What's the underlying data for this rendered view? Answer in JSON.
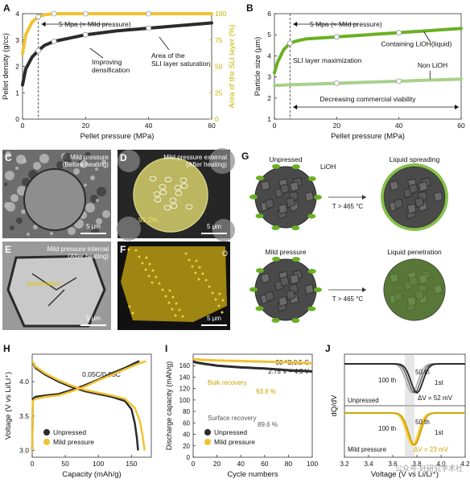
{
  "panel_letters": {
    "a": "A",
    "b": "B",
    "c": "C",
    "d": "D",
    "e": "E",
    "f": "F",
    "g": "G",
    "h": "H",
    "i": "I",
    "j": "J"
  },
  "micrographs": {
    "c_caption": "Mild pressure\n(Before heating)",
    "d_caption": "Mild pressure external\n(After heating)",
    "d_percent": "95.2%",
    "e_caption": "Mild pressure internal\n(After heating)",
    "e_annotation": "penetration",
    "f_element": "O",
    "scalebar": "5 μm"
  },
  "schematic": {
    "unpressed": "Unpressed",
    "lioh": "LiOH",
    "liquid_spreading": "Liquid spreading",
    "mild_pressure": "Mild pressure",
    "liquid_penetration": "Liquid penetration",
    "temperature_top": "T > 465 °C",
    "temperature_bottom": "T > 465 °C"
  },
  "watermark": "公众号·好研究学术社",
  "colors": {
    "dark": "#2b2b2b",
    "gray": "#8a8a8a",
    "yellow": "#f1c232",
    "green": "#6ab023",
    "lightgreen": "#a8d08d",
    "axis_yellow": "#c9b400"
  },
  "chart_data": [
    {
      "panel": "A",
      "type": "line",
      "xlabel": "Pellet pressure (MPa)",
      "ylabel": "Pellet density (g/cc)",
      "ylabel_right": "Area of the SLI layer (%)",
      "xlim": [
        0,
        60
      ],
      "ylim": [
        0,
        4
      ],
      "ylim_right": [
        0,
        100
      ],
      "xticks": [
        "0",
        "20",
        "40",
        "60"
      ],
      "yticks": [
        "0",
        "1",
        "2",
        "3",
        "4"
      ],
      "yticks_right": [
        "0",
        "25",
        "50",
        "75",
        "100"
      ],
      "series": [
        {
          "axis": "left",
          "color": "#2b2b2b",
          "x": [
            0,
            1,
            3,
            5,
            7,
            10,
            20,
            30,
            40,
            50,
            60
          ],
          "y": [
            1.3,
            1.9,
            2.35,
            2.6,
            2.8,
            2.95,
            3.2,
            3.35,
            3.45,
            3.55,
            3.65
          ],
          "markers_x": [
            5,
            10,
            20,
            40
          ]
        },
        {
          "axis": "right",
          "color": "#f1c232",
          "x": [
            0,
            1,
            3,
            5,
            7,
            10,
            20,
            30,
            40,
            50,
            60
          ],
          "y": [
            62,
            80,
            92,
            97,
            99,
            100,
            100,
            100,
            100,
            100,
            100
          ],
          "markers_x": [
            5,
            10,
            20,
            40
          ]
        }
      ],
      "vline_x": 5,
      "annotations": [
        "5 Mpa (≈ Mild pressure)",
        "Improving\ndensification",
        "Area of the\nSLI layer saturation"
      ]
    },
    {
      "panel": "B",
      "type": "line",
      "xlabel": "Pellet pressure (MPa)",
      "ylabel": "Particle size (μm)",
      "xlim": [
        0,
        60
      ],
      "ylim": [
        1,
        6
      ],
      "xticks": [
        "0",
        "20",
        "40",
        "60"
      ],
      "yticks": [
        "1",
        "2",
        "3",
        "4",
        "5",
        "6"
      ],
      "series": [
        {
          "name": "Containing LiOH(liquid)",
          "color": "#6ab023",
          "x": [
            0,
            1,
            3,
            5,
            7,
            10,
            20,
            30,
            40,
            50,
            60
          ],
          "y": [
            3.2,
            3.7,
            4.3,
            4.6,
            4.7,
            4.8,
            4.9,
            5.0,
            5.1,
            5.2,
            5.3
          ],
          "markers_x": [
            5,
            20,
            40
          ]
        },
        {
          "name": "Non LiOH",
          "color": "#a8d08d",
          "x": [
            0,
            10,
            20,
            30,
            40,
            50,
            60
          ],
          "y": [
            2.6,
            2.65,
            2.7,
            2.75,
            2.8,
            2.85,
            2.9
          ],
          "markers_x": [
            20,
            40
          ]
        }
      ],
      "vline_x": 5,
      "annotations": [
        "5 Mpa (≈ Mild pressure)",
        "SLI layer maximization",
        "Decreasing commercial viability"
      ]
    },
    {
      "panel": "H",
      "type": "line",
      "xlabel": "Capacity (mAh/g)",
      "ylabel": "Voltage (V vs Li/Li⁺)",
      "xlim": [
        0,
        180
      ],
      "ylim": [
        2.9,
        4.4
      ],
      "xticks": [
        "0",
        "50",
        "100",
        "150"
      ],
      "yticks": [
        "3.0",
        "3.5",
        "4.0"
      ],
      "rate_label": "0.05C/0.05C",
      "series": [
        {
          "name": "Unpressed",
          "color": "#2b2b2b",
          "charge": {
            "x": [
              0,
              1,
              5,
              20,
              40,
              60,
              80,
              100,
              120,
              140,
              155,
              162
            ],
            "y": [
              3.0,
              3.75,
              3.78,
              3.8,
              3.82,
              3.88,
              3.95,
              4.03,
              4.12,
              4.2,
              4.27,
              4.3
            ]
          },
          "discharge": {
            "x": [
              0,
              5,
              20,
              40,
              60,
              80,
              100,
              120,
              140,
              150,
              155,
              158,
              160
            ],
            "y": [
              4.3,
              4.2,
              4.1,
              4.0,
              3.92,
              3.86,
              3.82,
              3.78,
              3.72,
              3.6,
              3.4,
              3.2,
              3.0
            ]
          }
        },
        {
          "name": "Mild pressure",
          "color": "#f1c232",
          "charge": {
            "x": [
              0,
              1,
              5,
              20,
              40,
              60,
              80,
              100,
              120,
              140,
              160,
              172
            ],
            "y": [
              3.0,
              3.72,
              3.75,
              3.78,
              3.8,
              3.86,
              3.93,
              4.02,
              4.1,
              4.18,
              4.26,
              4.3
            ]
          },
          "discharge": {
            "x": [
              0,
              5,
              20,
              40,
              60,
              80,
              100,
              120,
              140,
              155,
              163,
              167,
              170
            ],
            "y": [
              4.3,
              4.22,
              4.12,
              4.02,
              3.94,
              3.88,
              3.84,
              3.8,
              3.75,
              3.62,
              3.42,
              3.2,
              3.0
            ]
          }
        }
      ]
    },
    {
      "panel": "I",
      "type": "line",
      "xlabel": "Cycle numbers",
      "ylabel": "Discharge capacity (mAh/g)",
      "xlim": [
        0,
        100
      ],
      "ylim": [
        0,
        180
      ],
      "xticks": [
        "0",
        "20",
        "40",
        "60",
        "80",
        "100"
      ],
      "yticks": [
        "0",
        "20",
        "40",
        "60",
        "80",
        "100",
        "120",
        "140",
        "160"
      ],
      "conditions": [
        "30 °C,0.5 C",
        "2.75 V – 4.3 V"
      ],
      "series": [
        {
          "name": "Unpressed",
          "color": "#2b2b2b",
          "x": [
            0,
            1,
            10,
            20,
            40,
            60,
            80,
            100
          ],
          "y": [
            168,
            166,
            163,
            160,
            157,
            155,
            152,
            150
          ]
        },
        {
          "name": "Mild pressure",
          "color": "#f1c232",
          "x": [
            0,
            1,
            10,
            20,
            40,
            60,
            80,
            100
          ],
          "y": [
            172,
            171,
            170,
            169,
            168,
            167,
            166,
            164
          ]
        }
      ],
      "annotations": {
        "bulk": "Bulk recovery",
        "bulk_pct": "93.8 %",
        "surface": "Surface recovery",
        "surface_pct": "89.6 %"
      }
    },
    {
      "panel": "J",
      "type": "line",
      "xlabel": "Voltage (V vs Li/Li⁺)",
      "ylabel": "dQ/dV",
      "xlim": [
        3.2,
        4.2
      ],
      "xticks": [
        "3.2",
        "3.4",
        "3.6",
        "3.8",
        "4.0",
        "4.2"
      ],
      "top": {
        "label": "Unpressed",
        "cycles": [
          "100 th",
          "50 th",
          "1st"
        ],
        "delta": "ΔV = 52 mV"
      },
      "bottom": {
        "label": "Mild pressure",
        "cycles": [
          "100 th",
          "50 th",
          "1st"
        ],
        "delta": "ΔV = 23 mV"
      }
    }
  ]
}
